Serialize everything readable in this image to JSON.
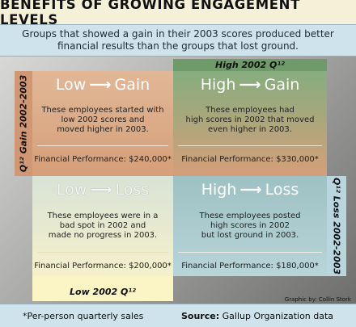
{
  "title": "BENEFITS OF GROWING ENGAGEMENT LEVELS",
  "subtitle": "Groups that showed a gain in their 2003 scores produced better financial results than the groups that lost ground.",
  "labels": {
    "high_2002": "High 2002 Q¹²",
    "low_2002": "Low 2002 Q¹²",
    "gain": "Q¹² Gain 2002-2003",
    "loss": "Q¹² Loss 2002-2003"
  },
  "arrow": "⟶",
  "quadrants": {
    "low_gain": {
      "from": "Low",
      "to": "Gain",
      "desc": [
        "These employees started with",
        "low 2002 scores and",
        "moved higher in 2003."
      ],
      "perf": "Financial Performance: $240,000*"
    },
    "high_gain": {
      "from": "High",
      "to": "Gain",
      "desc": [
        "These employees had",
        "high scores in 2002 that moved",
        "even higher in 2003."
      ],
      "perf": "Financial Performance: $330,000*"
    },
    "low_loss": {
      "from": "Low",
      "to": "Loss",
      "desc": [
        "These employees were in a",
        "bad spot in 2002 and",
        "made no progress in 2003."
      ],
      "perf": "Financial Performance: $200,000*"
    },
    "high_loss": {
      "from": "High",
      "to": "Loss",
      "desc": [
        "These employees posted",
        "high scores in 2002",
        "but lost ground in 2003."
      ],
      "perf": "Financial Performance: $180,000*"
    }
  },
  "credit": "Graphic by: Collin Stork",
  "footer": {
    "note": "*Per-person quarterly sales",
    "source_label": "Source:",
    "source_value": "Gallup Organization data"
  },
  "colors": {
    "gain_strip": "#d7a37f",
    "high_green": "#6f9b6a",
    "low_yellow": "#fbf4c5",
    "loss_blue": "#8fb7c0",
    "header_blue": "#cfe3ec"
  }
}
